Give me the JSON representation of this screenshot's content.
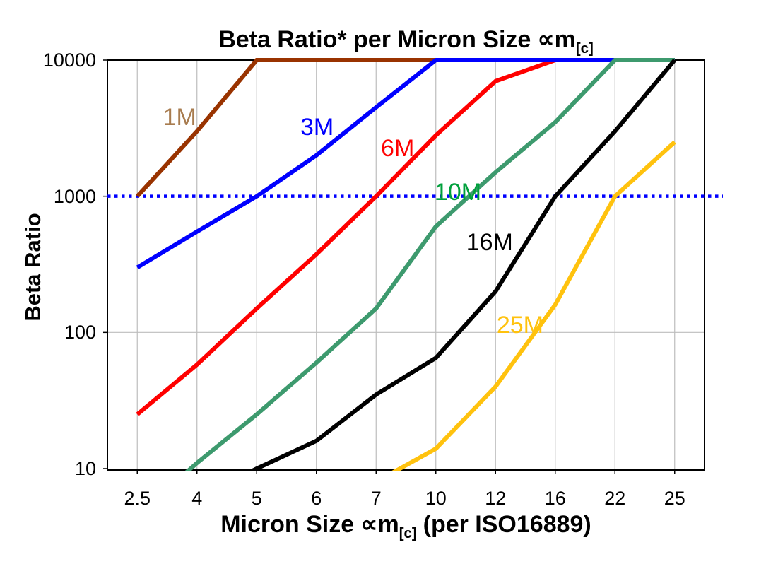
{
  "title": {
    "prefix": "Beta Ratio* per Micron Size",
    "symbol": "∝m",
    "subscript": "[c]"
  },
  "y_axis": {
    "label": "Beta Ratio",
    "ticks": [
      "10000",
      "1000",
      "100",
      "10"
    ]
  },
  "x_axis": {
    "prefix": "Micron Size",
    "symbol": "∝m",
    "subscript": "[c]",
    "suffix": "(per ISO16889)",
    "ticks": [
      "2.5",
      "4",
      "5",
      "6",
      "7",
      "10",
      "12",
      "16",
      "22",
      "25"
    ]
  },
  "chart_data": {
    "type": "line",
    "title": "Beta Ratio* per Micron Size ∝m[c]",
    "xlabel": "Micron Size ∝m[c] (per ISO16889)",
    "ylabel": "Beta Ratio",
    "x_scale": "category",
    "y_scale": "log",
    "ylim": [
      10,
      10000
    ],
    "ymax_clamp": 10000,
    "grid": {
      "vertical": true,
      "horizontal_values": [
        100
      ],
      "color": "#bdbdbd"
    },
    "categories": [
      2.5,
      4,
      5,
      6,
      7,
      10,
      12,
      16,
      22,
      25
    ],
    "series": [
      {
        "name": "1M",
        "color": "#993300",
        "label_color": "#A87C4F",
        "values": [
          1000,
          3000,
          10000,
          10000,
          10000,
          10000,
          10000,
          10000,
          10000,
          10000
        ],
        "label_anchor": {
          "xi": 0.71,
          "value": 3800
        }
      },
      {
        "name": "3M",
        "color": "#0000FF",
        "label_color": "#0000FF",
        "values": [
          300,
          550,
          1000,
          2000,
          4500,
          10000,
          10000,
          10000,
          10000,
          10000
        ],
        "label_anchor": {
          "xi": 3.01,
          "value": 3200
        }
      },
      {
        "name": "6M",
        "color": "#FF0000",
        "label_color": "#FF0000",
        "values": [
          25,
          58,
          150,
          375,
          1000,
          2800,
          7000,
          12500,
          12500,
          12500
        ],
        "label_anchor": {
          "xi": 4.36,
          "value": 2250
        }
      },
      {
        "name": "10M",
        "color": "#3D9A6E",
        "label_color": "#00A03C",
        "values": [
          4.5,
          11,
          25,
          60,
          150,
          600,
          1500,
          3500,
          10000,
          10000
        ],
        "label_anchor": {
          "xi": 5.37,
          "value": 1070
        }
      },
      {
        "name": "16M",
        "color": "#000000",
        "label_color": "#000000",
        "values": [
          3,
          6,
          10,
          16,
          35,
          65,
          200,
          1000,
          3000,
          10000
        ],
        "label_anchor": {
          "xi": 5.9,
          "value": 460
        }
      },
      {
        "name": "25M",
        "color": "#FFC20E",
        "label_color": "#FFC20E",
        "values": [
          null,
          null,
          null,
          null,
          8,
          14,
          40,
          160,
          1000,
          2500
        ],
        "label_anchor": {
          "xi": 6.41,
          "value": 113
        }
      }
    ],
    "draw_order": [
      "6M",
      "1M",
      "3M",
      "10M",
      "16M",
      "25M"
    ],
    "reference_line": {
      "value": 1000,
      "color": "#0000FF",
      "style": "dotted"
    }
  }
}
